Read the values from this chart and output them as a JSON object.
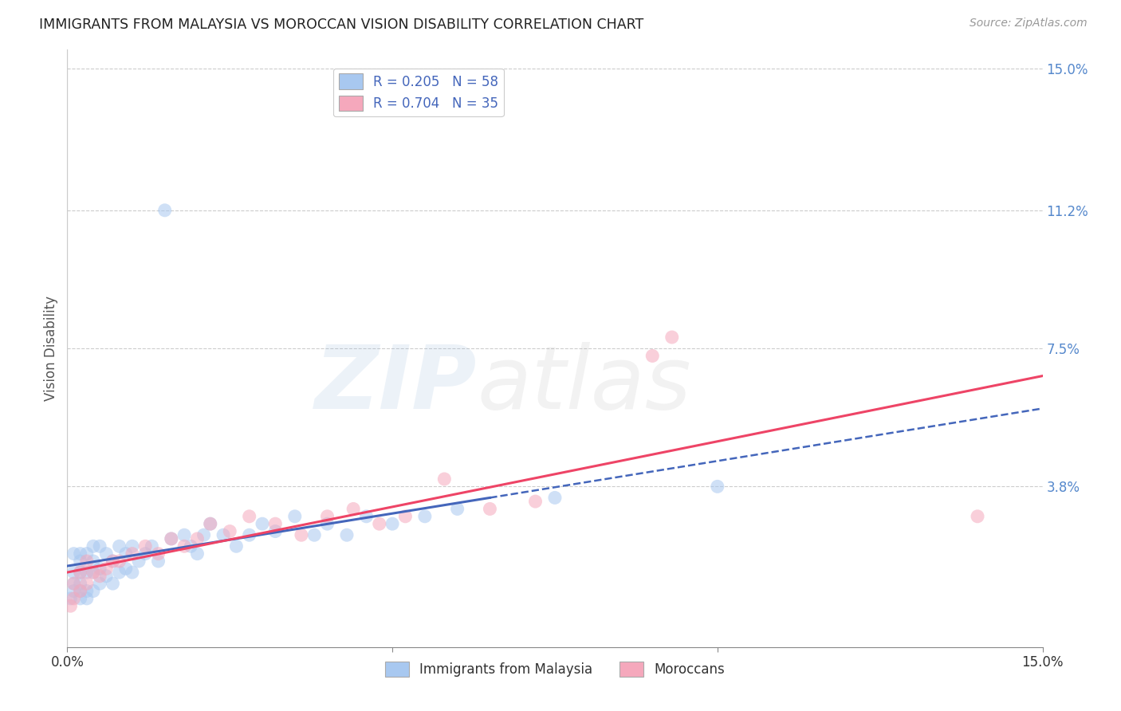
{
  "title": "IMMIGRANTS FROM MALAYSIA VS MOROCCAN VISION DISABILITY CORRELATION CHART",
  "source": "Source: ZipAtlas.com",
  "ylabel": "Vision Disability",
  "xlim": [
    0.0,
    0.15
  ],
  "ylim": [
    -0.005,
    0.155
  ],
  "yticks": [
    0.0,
    0.038,
    0.075,
    0.112,
    0.15
  ],
  "ytick_labels": [
    "",
    "3.8%",
    "7.5%",
    "11.2%",
    "15.0%"
  ],
  "xticks": [
    0.0,
    0.05,
    0.1,
    0.15
  ],
  "xtick_labels": [
    "0.0%",
    "",
    "",
    "15.0%"
  ],
  "color_blue": "#A8C8F0",
  "color_pink": "#F5A8BC",
  "line_color_blue": "#4466BB",
  "line_color_pink": "#EE4466",
  "malaysia_x": [
    0.0005,
    0.001,
    0.001,
    0.001,
    0.001,
    0.002,
    0.002,
    0.002,
    0.002,
    0.002,
    0.002,
    0.003,
    0.003,
    0.003,
    0.003,
    0.004,
    0.004,
    0.004,
    0.004,
    0.005,
    0.005,
    0.005,
    0.006,
    0.006,
    0.007,
    0.007,
    0.008,
    0.008,
    0.009,
    0.009,
    0.01,
    0.01,
    0.011,
    0.012,
    0.013,
    0.014,
    0.015,
    0.016,
    0.018,
    0.019,
    0.02,
    0.021,
    0.022,
    0.024,
    0.026,
    0.028,
    0.03,
    0.032,
    0.035,
    0.038,
    0.04,
    0.043,
    0.046,
    0.05,
    0.055,
    0.06,
    0.075,
    0.1
  ],
  "malaysia_y": [
    0.008,
    0.01,
    0.012,
    0.015,
    0.02,
    0.008,
    0.01,
    0.012,
    0.015,
    0.018,
    0.02,
    0.008,
    0.01,
    0.015,
    0.02,
    0.01,
    0.015,
    0.018,
    0.022,
    0.012,
    0.016,
    0.022,
    0.014,
    0.02,
    0.012,
    0.018,
    0.015,
    0.022,
    0.016,
    0.02,
    0.015,
    0.022,
    0.018,
    0.02,
    0.022,
    0.018,
    0.112,
    0.024,
    0.025,
    0.022,
    0.02,
    0.025,
    0.028,
    0.025,
    0.022,
    0.025,
    0.028,
    0.026,
    0.03,
    0.025,
    0.028,
    0.025,
    0.03,
    0.028,
    0.03,
    0.032,
    0.035,
    0.038
  ],
  "morocco_x": [
    0.0005,
    0.001,
    0.001,
    0.002,
    0.002,
    0.003,
    0.003,
    0.004,
    0.005,
    0.006,
    0.007,
    0.008,
    0.01,
    0.012,
    0.014,
    0.016,
    0.018,
    0.02,
    0.022,
    0.025,
    0.028,
    0.032,
    0.036,
    0.04,
    0.044,
    0.048,
    0.052,
    0.058,
    0.065,
    0.072,
    0.09,
    0.093,
    0.14
  ],
  "morocco_y": [
    0.006,
    0.008,
    0.012,
    0.01,
    0.015,
    0.012,
    0.018,
    0.015,
    0.014,
    0.016,
    0.018,
    0.018,
    0.02,
    0.022,
    0.02,
    0.024,
    0.022,
    0.024,
    0.028,
    0.026,
    0.03,
    0.028,
    0.025,
    0.03,
    0.032,
    0.028,
    0.03,
    0.04,
    0.032,
    0.034,
    0.073,
    0.078,
    0.03
  ]
}
